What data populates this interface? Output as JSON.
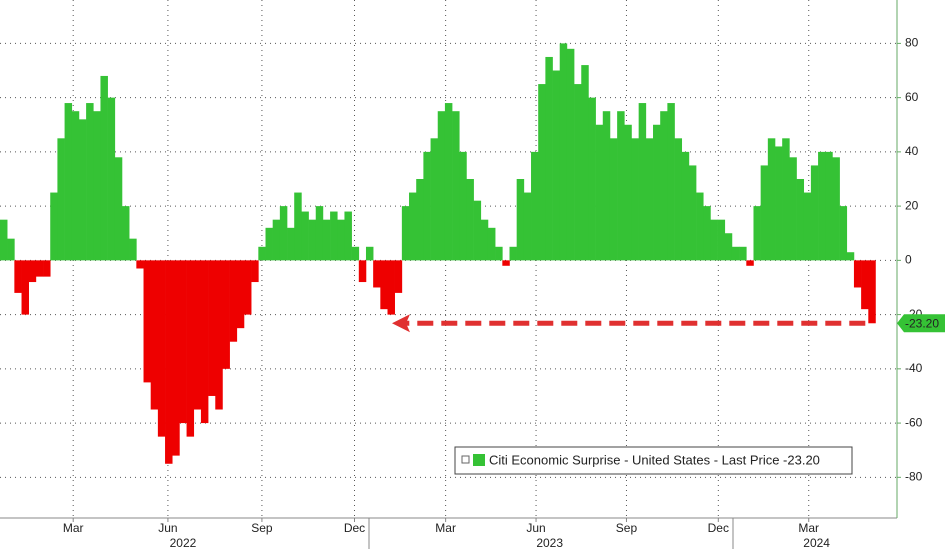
{
  "chart_data": {
    "type": "bar",
    "series": [
      {
        "name": "Citi Economic Surprise - United States - Last Price -23.20",
        "color": "#35c235",
        "negative_color": "#ee0000",
        "values": [
          15,
          8,
          -12,
          -20,
          -8,
          -6,
          -6,
          25,
          45,
          58,
          55,
          52,
          58,
          55,
          68,
          60,
          38,
          20,
          8,
          -3,
          -45,
          -55,
          -65,
          -75,
          -72,
          -60,
          -65,
          -55,
          -60,
          -50,
          -55,
          -40,
          -30,
          -25,
          -20,
          -8,
          5,
          12,
          15,
          20,
          12,
          25,
          18,
          15,
          20,
          15,
          18,
          15,
          18,
          5,
          -8,
          5,
          -10,
          -18,
          -20,
          -12,
          20,
          25,
          30,
          40,
          45,
          55,
          58,
          55,
          40,
          30,
          22,
          15,
          12,
          5,
          -2,
          5,
          30,
          25,
          40,
          65,
          75,
          70,
          80,
          78,
          65,
          72,
          60,
          50,
          55,
          45,
          55,
          50,
          45,
          58,
          45,
          50,
          55,
          58,
          45,
          40,
          35,
          25,
          20,
          15,
          15,
          10,
          5,
          5,
          -2,
          20,
          35,
          45,
          42,
          45,
          38,
          30,
          25,
          35,
          40,
          40,
          38,
          20,
          3,
          -10,
          -18,
          -23.2
        ]
      }
    ],
    "last_price_label": "-23.20",
    "xlim": [
      0,
      125
    ],
    "ylim": [
      -95,
      96
    ],
    "yticks": [
      80,
      60,
      40,
      20,
      0,
      -20,
      -40,
      -60,
      -80
    ],
    "xticks": [
      {
        "value": 10.2,
        "label": "Mar"
      },
      {
        "value": 23.4,
        "label": "Jun"
      },
      {
        "value": 36.5,
        "label": "Sep"
      },
      {
        "value": 49.4,
        "label": "Dec"
      },
      {
        "value": 62.1,
        "label": "Mar"
      },
      {
        "value": 74.7,
        "label": "Jun"
      },
      {
        "value": 87.3,
        "label": "Sep"
      },
      {
        "value": 100.1,
        "label": "Dec"
      },
      {
        "value": 112.7,
        "label": "Mar"
      }
    ],
    "year_ticks": [
      {
        "value": 25.5,
        "label": "2022"
      },
      {
        "value": 76.6,
        "label": "2023"
      },
      {
        "value": 113.8,
        "label": "2024"
      }
    ],
    "grid": true
  }
}
